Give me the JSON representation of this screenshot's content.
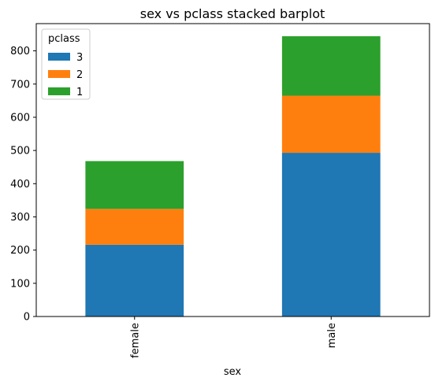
{
  "chart_data": {
    "type": "bar",
    "stacked": true,
    "title": "sex vs pclass stacked barplot",
    "xlabel": "sex",
    "ylabel": "",
    "categories": [
      "female",
      "male"
    ],
    "series": [
      {
        "name": "3",
        "values": [
          216,
          493
        ],
        "color": "#1f77b4"
      },
      {
        "name": "2",
        "values": [
          108,
          172
        ],
        "color": "#ff7f0e"
      },
      {
        "name": "1",
        "values": [
          144,
          179
        ],
        "color": "#2ca02c"
      }
    ],
    "ylim": [
      0,
      882
    ],
    "yticks": [
      0,
      100,
      200,
      300,
      400,
      500,
      600,
      700,
      800
    ],
    "legend": {
      "title": "pclass",
      "placement": "top-left"
    },
    "grid": false
  }
}
